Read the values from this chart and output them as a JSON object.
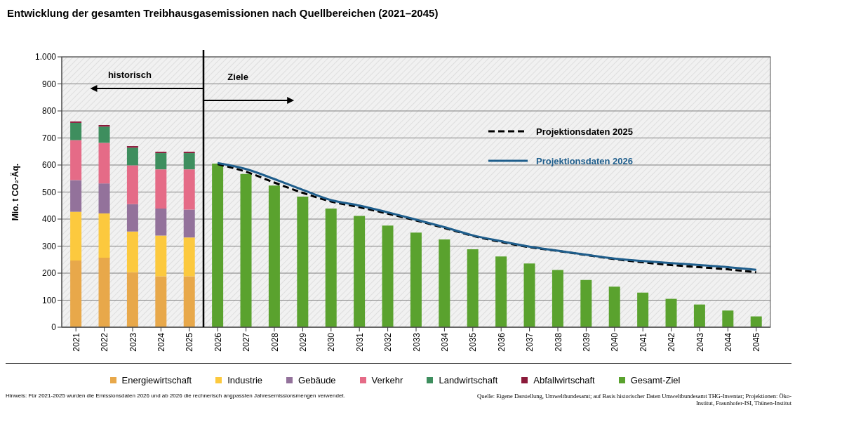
{
  "chart_data": {
    "type": "bar",
    "title": "Entwicklung der gesamten Treibhausgasemissionen nach Quellbereichen (2021–2045)",
    "ylabel": "Mio. t CO₂-Äq.",
    "categories": [
      "2021",
      "2022",
      "2023",
      "2024",
      "2025",
      "2026",
      "2027",
      "2028",
      "2029",
      "2030",
      "2031",
      "2032",
      "2033",
      "2034",
      "2035",
      "2036",
      "2037",
      "2038",
      "2039",
      "2040",
      "2041",
      "2042",
      "2043",
      "2044",
      "2045"
    ],
    "stacked": true,
    "ylim": [
      0,
      1000
    ],
    "yticks": [
      0,
      100,
      200,
      300,
      400,
      500,
      600,
      700,
      800,
      900,
      {
        "value": 1000,
        "label": "1.000"
      }
    ],
    "grid": "y",
    "legend": "bottom",
    "series": [
      {
        "name": "Energiewirtschaft",
        "color": "#e8a84a",
        "values": [
          247,
          257,
          203,
          188,
          188,
          null,
          null,
          null,
          null,
          null,
          null,
          null,
          null,
          null,
          null,
          null,
          null,
          null,
          null,
          null,
          null,
          null,
          null,
          null,
          null
        ]
      },
      {
        "name": "Industrie",
        "color": "#fcc93e",
        "values": [
          180,
          164,
          151,
          151,
          144,
          null,
          null,
          null,
          null,
          null,
          null,
          null,
          null,
          null,
          null,
          null,
          null,
          null,
          null,
          null,
          null,
          null,
          null,
          null,
          null
        ]
      },
      {
        "name": "Gebäude",
        "color": "#93729b",
        "values": [
          117,
          111,
          101,
          100,
          103,
          null,
          null,
          null,
          null,
          null,
          null,
          null,
          null,
          null,
          null,
          null,
          null,
          null,
          null,
          null,
          null,
          null,
          null,
          null,
          null
        ]
      },
      {
        "name": "Verkehr",
        "color": "#e56b87",
        "values": [
          148,
          150,
          144,
          145,
          149,
          null,
          null,
          null,
          null,
          null,
          null,
          null,
          null,
          null,
          null,
          null,
          null,
          null,
          null,
          null,
          null,
          null,
          null,
          null,
          null
        ]
      },
      {
        "name": "Landwirtschaft",
        "color": "#3e8e5e",
        "values": [
          64,
          60,
          65,
          60,
          60,
          null,
          null,
          null,
          null,
          null,
          null,
          null,
          null,
          null,
          null,
          null,
          null,
          null,
          null,
          null,
          null,
          null,
          null,
          null,
          null
        ]
      },
      {
        "name": "Abfallwirtschaft",
        "color": "#8b1a3a",
        "values": [
          5,
          6,
          6,
          5,
          5,
          null,
          null,
          null,
          null,
          null,
          null,
          null,
          null,
          null,
          null,
          null,
          null,
          null,
          null,
          null,
          null,
          null,
          null,
          null,
          null
        ]
      },
      {
        "name": "Gesamt-Ziel",
        "color": "#5aa22e",
        "values": [
          null,
          null,
          null,
          null,
          null,
          605,
          567,
          524,
          483,
          439,
          412,
          376,
          350,
          325,
          288,
          262,
          236,
          212,
          175,
          150,
          128,
          105,
          84,
          62,
          40
        ]
      },
      {
        "name": "Projektionsdaten 2025",
        "type": "line",
        "line_style": "dashed",
        "color": "#000000",
        "values": [
          null,
          null,
          null,
          null,
          null,
          603,
          575,
          535,
          497,
          465,
          444,
          420,
          395,
          367,
          338,
          315,
          296,
          282,
          267,
          252,
          240,
          230,
          222,
          214,
          203
        ]
      },
      {
        "name": "Projektionsdaten 2026",
        "type": "line",
        "line_style": "solid",
        "color": "#1f5e8c",
        "values": [
          null,
          null,
          null,
          null,
          null,
          607,
          585,
          548,
          508,
          470,
          450,
          425,
          398,
          370,
          340,
          318,
          298,
          283,
          268,
          254,
          245,
          237,
          230,
          222,
          212
        ]
      }
    ],
    "ref_lines": [
      {
        "axis": "x",
        "value": "2025",
        "color": "#000000"
      }
    ],
    "annotations": [
      "historisch",
      "Ziele",
      "Hinweis: Für 2021-2025 wurden die Emissionsdaten 2026 und ab 2026 die rechnerisch angpassten Jahresemissionsmengen verwendet.",
      "Quelle: Eigene Darstellung, Umweltbundesamt; auf Basis historischer Daten Umweltbundesamt THG-Inventar; Projektionen: Öko-Institut, Fraunhofer-ISI, Thünen-Institut"
    ]
  }
}
